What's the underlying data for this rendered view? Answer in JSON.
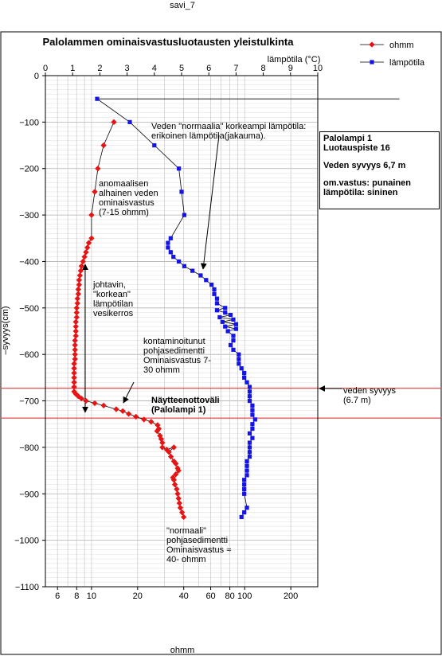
{
  "header": {
    "label": "savi_7"
  },
  "footer": {
    "label": "ohmm"
  },
  "info_box": {
    "line1": "Palolampi 1",
    "line2": "Luotauspiste 16",
    "line3": "Veden syvyys 6,7 m",
    "line4": "om.vastus: punainen",
    "line5": "lämpötila: sininen"
  },
  "annotations": {
    "normaalia": [
      "Veden \"normaalia\" korkeampi lämpötila:",
      "erikoinen lämpötila(jakauma)."
    ],
    "anomaalinen": [
      "anomaalisen",
      "alhainen veden",
      "ominaisvastus",
      "(7-15 ohmm)"
    ],
    "johtavin": [
      "johtavin,",
      "\"korkean\"",
      "lämpötilan",
      "vesikerros"
    ],
    "kontaminoitunut": [
      "kontaminoitunut",
      "pohjasedimentti",
      "Ominaisvastus 7-",
      "30 ohmm"
    ],
    "naytteenotto": [
      "Näytteenottoväli",
      "(Palolampi 1)"
    ],
    "veden_syvyys": [
      "veden syvyys",
      "(6.7 m)"
    ],
    "normaali": [
      "\"normaali\"",
      "pohjasedimentti",
      "Ominaisvastus ≈",
      "40- ohmm"
    ]
  },
  "colors": {
    "resistivity": "#e81414",
    "temperature": "#1414e8",
    "reference_line": "#dd2222",
    "grid": "#c8c8c8"
  },
  "chart_data": {
    "type": "scatter",
    "title": "Palolammen ominaisvastusluotausten yleistulkinta",
    "ylabel": "–syvyys(cm)",
    "x_bottom": {
      "scale": "log",
      "range": [
        5,
        300
      ],
      "ticks": [
        6,
        8,
        10,
        20,
        40,
        60,
        80,
        100,
        200
      ],
      "tick_labels": [
        "6",
        "8",
        "10",
        "20",
        "40",
        "60",
        "80",
        "100",
        "200"
      ]
    },
    "x_top": {
      "label": "lämpötila (°C)",
      "range": [
        0,
        10
      ],
      "ticks": [
        0,
        1,
        2,
        3,
        4,
        5,
        6,
        7,
        8,
        9,
        10
      ],
      "tick_labels": [
        "0",
        "1",
        "2",
        "3",
        "4",
        "5",
        "6",
        "7",
        "8",
        "9",
        "10"
      ]
    },
    "y": {
      "range": [
        -1100,
        0
      ],
      "ticks": [
        0,
        -100,
        -200,
        -300,
        -400,
        -500,
        -600,
        -700,
        -800,
        -900,
        -1000,
        -1100
      ],
      "tick_labels": [
        "0",
        "−100",
        "−200",
        "−300",
        "−400",
        "−500",
        "−600",
        "−700",
        "−800",
        "−900",
        "−1000",
        "−1100"
      ]
    },
    "legend": {
      "position": "top-right",
      "entries": [
        "ohmm",
        "lämpötila"
      ]
    },
    "reference_lines_y": [
      -673,
      -737
    ],
    "series": [
      {
        "name": "ohmm",
        "axis": "bottom",
        "points": [
          [
            14,
            -100
          ],
          [
            12,
            -150
          ],
          [
            11,
            -200
          ],
          [
            10.5,
            -250
          ],
          [
            10,
            -300
          ],
          [
            10,
            -350
          ],
          [
            9.6,
            -360
          ],
          [
            9.4,
            -370
          ],
          [
            9.2,
            -380
          ],
          [
            9.0,
            -390
          ],
          [
            8.8,
            -400
          ],
          [
            8.6,
            -410
          ],
          [
            8.5,
            -420
          ],
          [
            8.4,
            -430
          ],
          [
            8.3,
            -440
          ],
          [
            8.3,
            -450
          ],
          [
            8.2,
            -460
          ],
          [
            8.2,
            -470
          ],
          [
            8.1,
            -480
          ],
          [
            8.1,
            -490
          ],
          [
            8.0,
            -500
          ],
          [
            8.0,
            -510
          ],
          [
            8.0,
            -520
          ],
          [
            7.9,
            -530
          ],
          [
            7.9,
            -540
          ],
          [
            7.9,
            -550
          ],
          [
            7.9,
            -560
          ],
          [
            7.8,
            -570
          ],
          [
            7.8,
            -580
          ],
          [
            7.8,
            -590
          ],
          [
            7.8,
            -600
          ],
          [
            7.8,
            -610
          ],
          [
            7.7,
            -620
          ],
          [
            7.7,
            -630
          ],
          [
            7.7,
            -640
          ],
          [
            7.7,
            -650
          ],
          [
            7.7,
            -660
          ],
          [
            7.7,
            -670
          ],
          [
            7.7,
            -680
          ],
          [
            7.9,
            -685
          ],
          [
            8.2,
            -690
          ],
          [
            8.6,
            -695
          ],
          [
            9.2,
            -700
          ],
          [
            10.5,
            -705
          ],
          [
            12,
            -710
          ],
          [
            14.5,
            -718
          ],
          [
            16,
            -722
          ],
          [
            17.5,
            -728
          ],
          [
            19.5,
            -734
          ],
          [
            22,
            -740
          ],
          [
            24.5,
            -745
          ],
          [
            27,
            -752
          ],
          [
            27.5,
            -760
          ],
          [
            26.8,
            -765
          ],
          [
            28,
            -775
          ],
          [
            28.5,
            -782
          ],
          [
            29,
            -790
          ],
          [
            29,
            -800
          ],
          [
            31,
            -805
          ],
          [
            34.5,
            -800
          ],
          [
            32,
            -810
          ],
          [
            33,
            -820
          ],
          [
            34.5,
            -830
          ],
          [
            35.5,
            -835
          ],
          [
            36.5,
            -845
          ],
          [
            37,
            -850
          ],
          [
            35.5,
            -858
          ],
          [
            34,
            -865
          ],
          [
            34.5,
            -870
          ],
          [
            35,
            -880
          ],
          [
            36,
            -890
          ],
          [
            36.5,
            -900
          ],
          [
            37,
            -910
          ],
          [
            37.5,
            -920
          ],
          [
            38,
            -930
          ],
          [
            39,
            -940
          ],
          [
            40,
            -950
          ]
        ]
      },
      {
        "name": "lämpötila",
        "axis": "top",
        "points": [
          [
            13.0,
            -50
          ],
          [
            1.9,
            -50
          ],
          [
            3.1,
            -100
          ],
          [
            4.0,
            -150
          ],
          [
            4.9,
            -200
          ],
          [
            5.0,
            -250
          ],
          [
            5.1,
            -300
          ],
          [
            4.6,
            -350
          ],
          [
            4.5,
            -360
          ],
          [
            4.5,
            -370
          ],
          [
            4.6,
            -380
          ],
          [
            4.7,
            -390
          ],
          [
            4.9,
            -400
          ],
          [
            5.1,
            -410
          ],
          [
            5.4,
            -420
          ],
          [
            5.7,
            -430
          ],
          [
            5.9,
            -440
          ],
          [
            6.1,
            -450
          ],
          [
            6.2,
            -460
          ],
          [
            6.2,
            -470
          ],
          [
            6.3,
            -480
          ],
          [
            6.3,
            -490
          ],
          [
            6.6,
            -500
          ],
          [
            6.3,
            -505
          ],
          [
            6.6,
            -510
          ],
          [
            6.8,
            -515
          ],
          [
            6.4,
            -520
          ],
          [
            6.9,
            -525
          ],
          [
            6.5,
            -530
          ],
          [
            7.0,
            -535
          ],
          [
            6.6,
            -540
          ],
          [
            7.0,
            -545
          ],
          [
            6.7,
            -550
          ],
          [
            6.9,
            -560
          ],
          [
            6.9,
            -570
          ],
          [
            6.8,
            -580
          ],
          [
            6.9,
            -590
          ],
          [
            7.1,
            -600
          ],
          [
            7.1,
            -610
          ],
          [
            7.1,
            -620
          ],
          [
            7.2,
            -630
          ],
          [
            7.3,
            -640
          ],
          [
            7.3,
            -650
          ],
          [
            7.4,
            -660
          ],
          [
            7.5,
            -670
          ],
          [
            7.5,
            -680
          ],
          [
            7.5,
            -690
          ],
          [
            7.5,
            -700
          ],
          [
            7.6,
            -710
          ],
          [
            7.6,
            -720
          ],
          [
            7.6,
            -730
          ],
          [
            7.7,
            -740
          ],
          [
            7.6,
            -750
          ],
          [
            7.6,
            -760
          ],
          [
            7.5,
            -770
          ],
          [
            7.6,
            -780
          ],
          [
            7.5,
            -790
          ],
          [
            7.5,
            -800
          ],
          [
            7.5,
            -810
          ],
          [
            7.5,
            -820
          ],
          [
            7.4,
            -830
          ],
          [
            7.4,
            -840
          ],
          [
            7.4,
            -850
          ],
          [
            7.4,
            -860
          ],
          [
            7.3,
            -870
          ],
          [
            7.3,
            -880
          ],
          [
            7.3,
            -890
          ],
          [
            7.3,
            -900
          ],
          [
            7.4,
            -930
          ],
          [
            7.3,
            -940
          ],
          [
            7.2,
            -950
          ]
        ]
      }
    ]
  }
}
